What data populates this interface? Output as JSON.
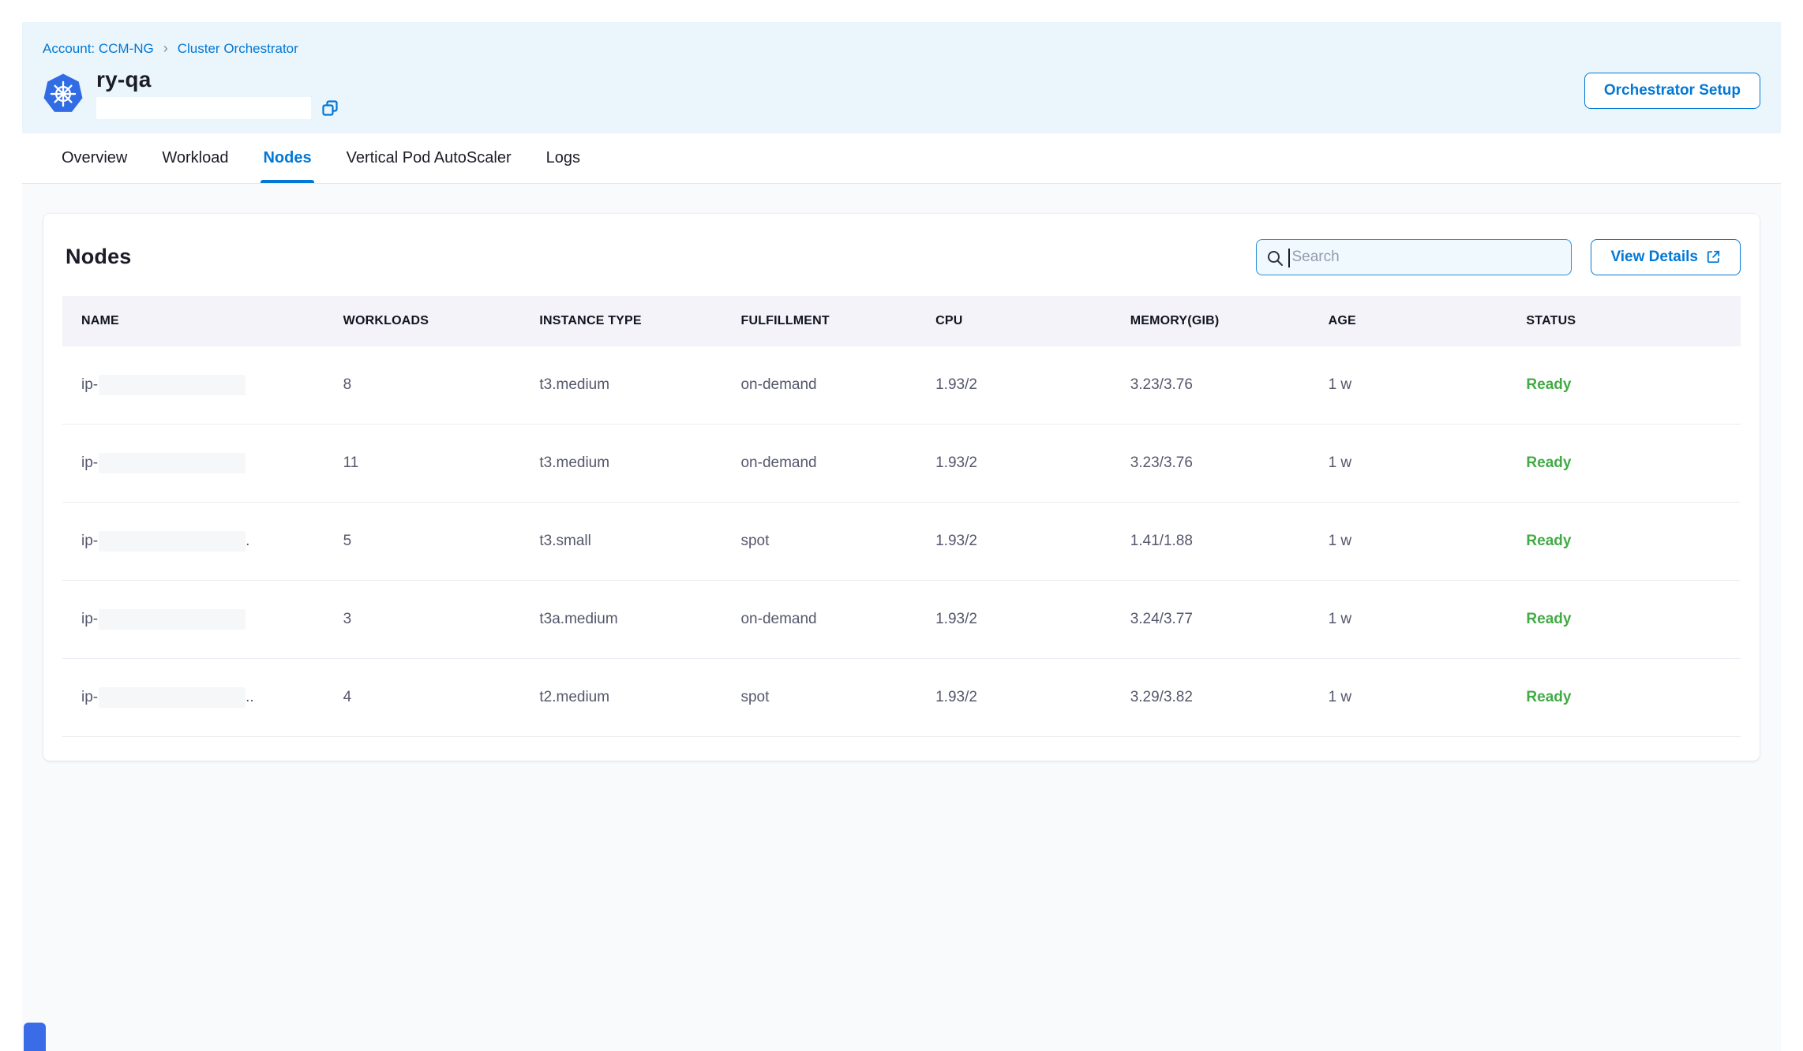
{
  "breadcrumb": {
    "account": "Account: CCM-NG",
    "section": "Cluster Orchestrator"
  },
  "header": {
    "title": "ry-qa",
    "setup_button": "Orchestrator Setup"
  },
  "tabs": [
    {
      "label": "Overview",
      "active": false
    },
    {
      "label": "Workload",
      "active": false
    },
    {
      "label": "Nodes",
      "active": true
    },
    {
      "label": "Vertical Pod AutoScaler",
      "active": false
    },
    {
      "label": "Logs",
      "active": false
    }
  ],
  "panel": {
    "title": "Nodes",
    "search_placeholder": "Search",
    "view_details_label": "View Details",
    "table": {
      "columns": [
        "NAME",
        "WORKLOADS",
        "INSTANCE TYPE",
        "FULFILLMENT",
        "CPU",
        "MEMORY(GIB)",
        "AGE",
        "STATUS"
      ],
      "rows": [
        {
          "name_prefix": "ip-",
          "name_suffix": "",
          "workloads": "8",
          "instance_type": "t3.medium",
          "fulfillment": "on-demand",
          "cpu": "1.93/2",
          "memory": "3.23/3.76",
          "age": "1 w",
          "status": "Ready"
        },
        {
          "name_prefix": "ip-",
          "name_suffix": "",
          "workloads": "11",
          "instance_type": "t3.medium",
          "fulfillment": "on-demand",
          "cpu": "1.93/2",
          "memory": "3.23/3.76",
          "age": "1 w",
          "status": "Ready"
        },
        {
          "name_prefix": "ip-",
          "name_suffix": ".",
          "workloads": "5",
          "instance_type": "t3.small",
          "fulfillment": "spot",
          "cpu": "1.93/2",
          "memory": "1.41/1.88",
          "age": "1 w",
          "status": "Ready"
        },
        {
          "name_prefix": "ip-",
          "name_suffix": "",
          "workloads": "3",
          "instance_type": "t3a.medium",
          "fulfillment": "on-demand",
          "cpu": "1.93/2",
          "memory": "3.24/3.77",
          "age": "1 w",
          "status": "Ready"
        },
        {
          "name_prefix": "ip-",
          "name_suffix": "..",
          "workloads": "4",
          "instance_type": "t2.medium",
          "fulfillment": "spot",
          "cpu": "1.93/2",
          "memory": "3.29/3.82",
          "age": "1 w",
          "status": "Ready"
        }
      ]
    }
  },
  "icons": {
    "kubernetes": "kubernetes-logo",
    "copy": "copy-icon",
    "search": "search-icon",
    "external_link": "external-link-icon",
    "breadcrumb_separator": "chevron-right-icon"
  },
  "colors": {
    "accent": "#0278d5",
    "status_ready": "#42ab45",
    "kubernetes_blue": "#326ce5",
    "header_band": "#ebf5fc"
  }
}
